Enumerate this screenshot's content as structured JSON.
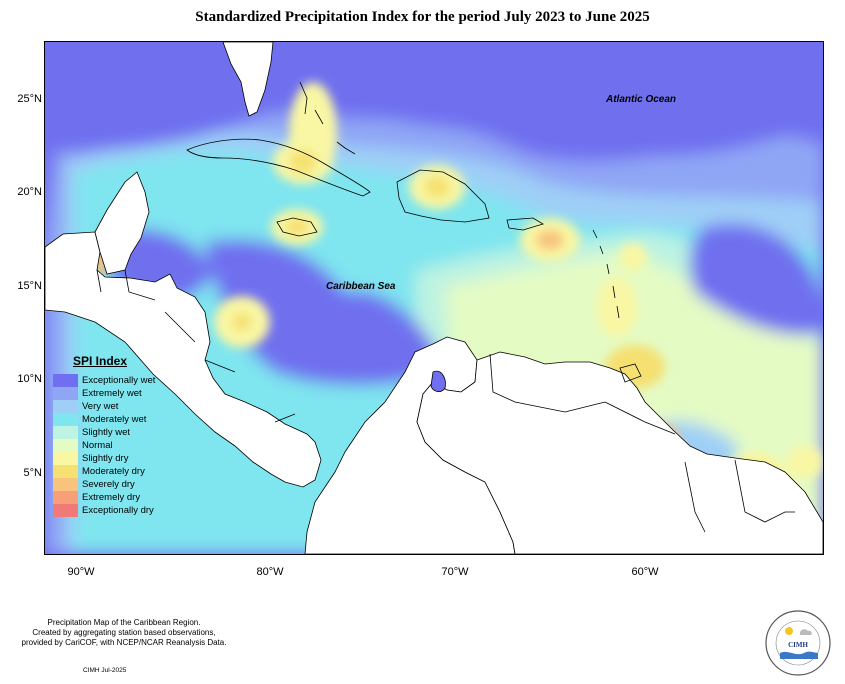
{
  "title": "Standardized Precipitation Index for the period July 2023 to June 2025",
  "lat_labels": [
    "25°N",
    "20°N",
    "15°N",
    "10°N",
    "5°N"
  ],
  "lon_labels": [
    "90°W",
    "80°W",
    "70°W",
    "60°W"
  ],
  "places": {
    "atlantic": "Atlantic Ocean",
    "caribbean": "Caribbean Sea"
  },
  "legend": {
    "title": "SPI Index",
    "items": [
      {
        "label": "Exceptionally wet",
        "color": "#6f6fef"
      },
      {
        "label": "Extremely wet",
        "color": "#8fa6f5"
      },
      {
        "label": "Very wet",
        "color": "#9fcff7"
      },
      {
        "label": "Moderately wet",
        "color": "#7fe5ef"
      },
      {
        "label": "Slightly wet",
        "color": "#bdf3e1"
      },
      {
        "label": "Normal",
        "color": "#e4fbc4"
      },
      {
        "label": "Slightly dry",
        "color": "#f9f7a3"
      },
      {
        "label": "Moderately dry",
        "color": "#f5e071"
      },
      {
        "label": "Severely dry",
        "color": "#f8c37d"
      },
      {
        "label": "Extremely dry",
        "color": "#f79f78"
      },
      {
        "label": "Exceptionally dry",
        "color": "#f07a78"
      }
    ]
  },
  "footer": {
    "line1": "Precipitation Map of the Caribbean Region.",
    "line2": "Created by aggregating station based observations,",
    "line3": "provided by CariCOF, with NCEP/NCAR Reanalysis Data.",
    "credit": "CIMH Jul-2025"
  },
  "logo": {
    "text": "CIMH"
  }
}
